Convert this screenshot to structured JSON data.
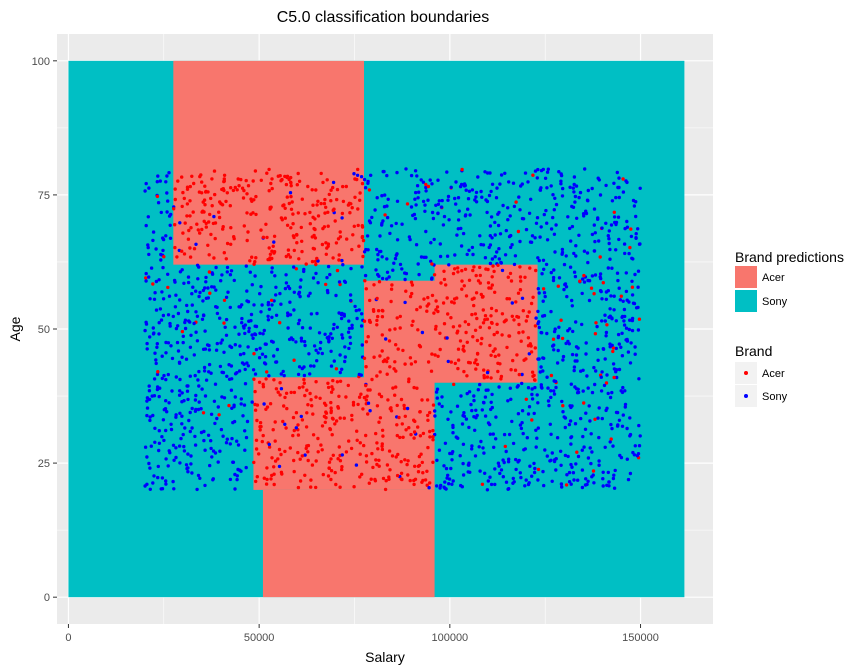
{
  "chart_data": {
    "type": "scatter",
    "title": "C5.0 classification boundaries",
    "xlabel": "Salary",
    "ylabel": "Age",
    "xlim": [
      -3000,
      169000
    ],
    "ylim": [
      -5,
      105
    ],
    "x_ticks": [
      0,
      50000,
      100000,
      150000
    ],
    "x_tick_labels": [
      "0",
      "50000",
      "100000",
      "150000"
    ],
    "y_ticks": [
      0,
      25,
      50,
      75,
      100
    ],
    "y_tick_labels": [
      "0",
      "25",
      "50",
      "75",
      "100"
    ],
    "grid": true,
    "legend_placement": "right",
    "colors": {
      "panel_bg": "#ebebeb",
      "grid": "#ffffff",
      "acer_fill": "#f8766d",
      "sony_fill": "#00bfc4",
      "acer_point": "#ff0000",
      "sony_point": "#0000ff"
    },
    "prediction_legend": {
      "title": "Brand predictions",
      "items": [
        {
          "label": "Acer",
          "color": "#f8766d"
        },
        {
          "label": "Sony",
          "color": "#00bfc4"
        }
      ]
    },
    "point_legend": {
      "title": "Brand",
      "items": [
        {
          "label": "Acer",
          "color": "#ff0000"
        },
        {
          "label": "Sony",
          "color": "#0000ff"
        }
      ]
    },
    "background_region": {
      "brand": "Sony",
      "x": [
        0,
        161500
      ],
      "y": [
        0,
        100
      ]
    },
    "acer_regions": [
      {
        "x": [
          27500,
          77500
        ],
        "y": [
          62,
          100
        ]
      },
      {
        "x": [
          77500,
          100000
        ],
        "y": [
          40,
          59
        ]
      },
      {
        "x": [
          96000,
          123000
        ],
        "y": [
          40,
          62
        ]
      },
      {
        "x": [
          48500,
          96000
        ],
        "y": [
          20,
          41
        ]
      },
      {
        "x": [
          51000,
          96000
        ],
        "y": [
          0,
          20
        ]
      }
    ],
    "points_sample": {
      "x_range": [
        20000,
        150000
      ],
      "y_range": [
        20,
        80
      ],
      "n": 2400,
      "density_note": "uniform grid of customers; color by observed brand"
    }
  }
}
